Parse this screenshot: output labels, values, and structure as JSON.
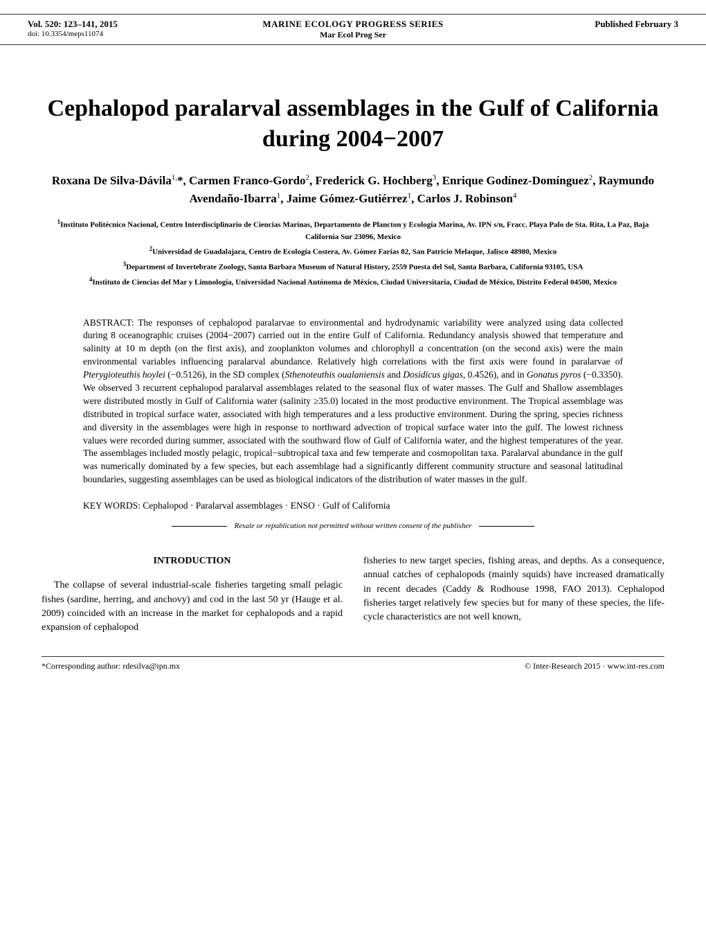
{
  "header": {
    "volume_line": "Vol. 520: 123–141, 2015",
    "doi_line": "doi: 10.3354/meps11074",
    "journal_name": "MARINE ECOLOGY PROGRESS SERIES",
    "journal_abbrev": "Mar Ecol Prog Ser",
    "pub_date": "Published February 3"
  },
  "title": "Cephalopod paralarval assemblages in the Gulf of California during 2004−2007",
  "authors_html": "Roxana De Silva-Dávila<sup>1,</sup>*, Carmen Franco-Gordo<sup>2</sup>, Frederick G. Hochberg<sup>3</sup>, Enrique Godínez-Domínguez<sup>2</sup>, Raymundo Avendaño-Ibarra<sup>1</sup>, Jaime Gómez-Gutiérrez<sup>1</sup>, Carlos J. Robinson<sup>4</sup>",
  "affiliations": [
    "<sup>1</sup>Instituto Politécnico Nacional, Centro Interdisciplinario de Ciencias Marinas, Departamento de Plancton y Ecología Marina, Av. IPN s/n, Fracc. Playa Palo de Sta. Rita, La Paz, Baja California Sur 23096, Mexico",
    "<sup>2</sup>Universidad de Guadalajara, Centro de Ecología Costera, Av. Gómez Farías 82, San Patricio Melaque, Jalisco 48980, Mexico",
    "<sup>3</sup>Department of Invertebrate Zoology, Santa Barbara Museum of Natural History, 2559 Puesta del Sol, Santa Barbara, California 93105, USA",
    "<sup>4</sup>Instituto de Ciencias del Mar y Limnología, Universidad Nacional Autónoma de México, Ciudad Universitaria, Ciudad de México, Distrito Federal 04500, Mexico"
  ],
  "abstract": {
    "label": "ABSTRACT: ",
    "text": "The responses of cephalopod paralarvae to environmental and hydrodynamic variability were analyzed using data collected during 8 oceanographic cruises (2004−2007) carried out in the entire Gulf of California. Redundancy analysis showed that temperature and salinity at 10 m depth (on the first axis), and zooplankton volumes and chlorophyll <span class=\"italic\">a</span> concentration (on the second axis) were the main environmental variables influencing paralarval abundance. Relatively high correlations with the first axis were found in paralarvae of <span class=\"italic\">Pterygioteuthis hoylei</span> (−0.5126), in the SD complex (<span class=\"italic\">Sthenoteuthis oualaniensis</span> and <span class=\"italic\">Dosidicus gigas</span>, 0.4526), and in <span class=\"italic\">Gonatus pyros</span> (−0.3350). We observed 3 recurrent cephalopod paralarval assemblages related to the seasonal flux of water masses. The Gulf and Shallow assemblages were distributed mostly in Gulf of California water (salinity ≥35.0) located in the most productive environment. The Tropical assemblage was distributed in tropical surface water, associated with high temperatures and a less productive environment. During the spring, species richness and diversity in the assemblages were high in response to northward advection of tropical surface water into the gulf. The lowest richness values were recorded during summer, associated with the southward flow of Gulf of California water, and the highest temperatures of the year. The assemblages included mostly pelagic, tropical−subtropical taxa and few temperate and cosmopolitan taxa. Paralarval abundance in the gulf was numerically dominated by a few species, but each assemblage had a significantly different community structure and seasonal latitudinal boundaries, suggesting assemblages can be used as biological indicators of the distribution of water masses in the gulf."
  },
  "keywords": {
    "label": "KEY WORDS:  ",
    "text": "Cephalopod · Paralarval assemblages · ENSO · Gulf of California"
  },
  "resale_notice": "Resale or republication not permitted without written consent of the publisher",
  "intro": {
    "heading": "INTRODUCTION",
    "col1": "The collapse of several industrial-scale fisheries targeting small pelagic fishes (sardine, herring, and anchovy) and cod in the last 50 yr (Hauge et al. 2009) coincided with an increase in the market for cephalopods and a rapid expansion of cephalopod",
    "col2": "fisheries to new target species, fishing areas, and depths. As a consequence, annual catches of cephalopods (mainly squids) have increased dramatically in recent decades (Caddy & Rodhouse 1998, FAO 2013). Cephalopod fisheries target relatively few species but for many of these species, the life-cycle characteristics are not well known,"
  },
  "footer": {
    "left": "*Corresponding author: rdesilva@ipn.mx",
    "right": "© Inter-Research 2015 · www.int-res.com"
  }
}
